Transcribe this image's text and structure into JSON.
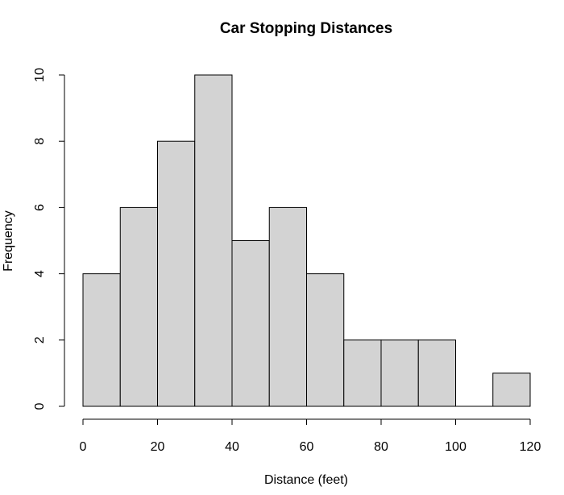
{
  "chart_data": {
    "type": "bar",
    "title": "Car Stopping Distances",
    "xlabel": "Distance (feet)",
    "ylabel": "Frequency",
    "bin_edges": [
      0,
      10,
      20,
      30,
      40,
      50,
      60,
      70,
      80,
      90,
      100,
      110,
      120
    ],
    "values": [
      4,
      6,
      8,
      10,
      5,
      6,
      4,
      2,
      2,
      2,
      0,
      1
    ],
    "xlim": [
      0,
      120
    ],
    "ylim": [
      0,
      10
    ],
    "x_ticks": [
      0,
      20,
      40,
      60,
      80,
      100,
      120
    ],
    "y_ticks": [
      0,
      2,
      4,
      6,
      8,
      10
    ],
    "grid": false,
    "bar_color": "#d3d3d3",
    "edge_color": "#000000"
  }
}
